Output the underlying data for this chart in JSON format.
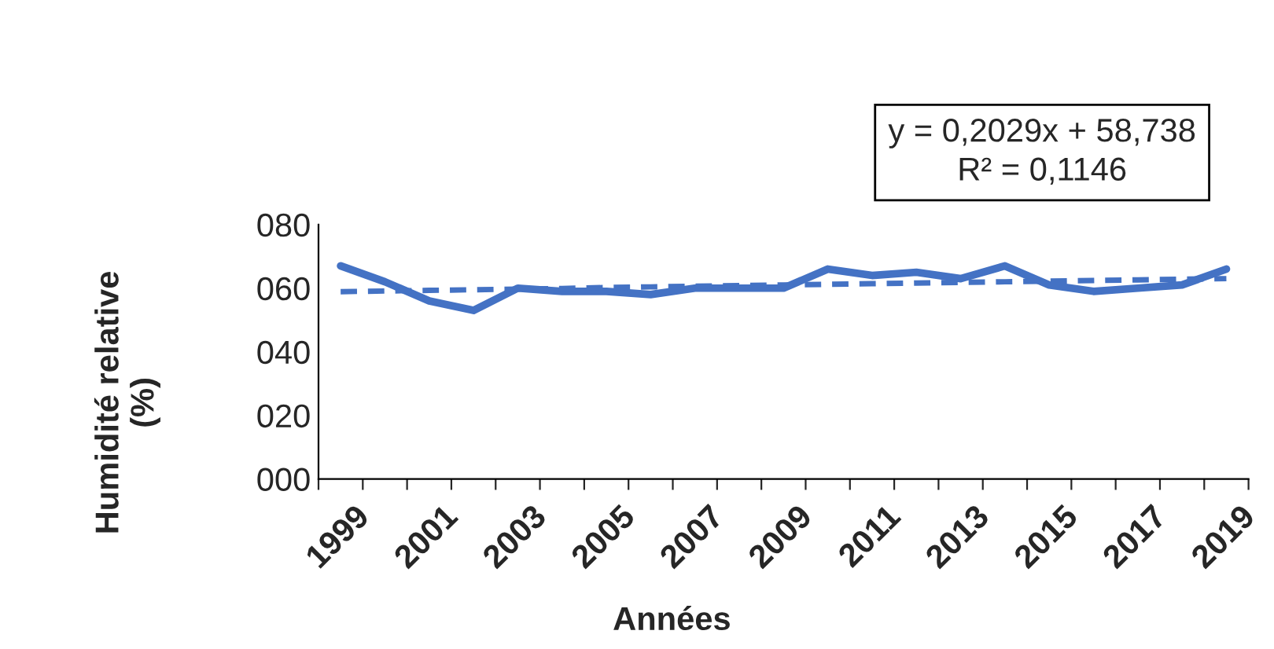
{
  "chart_data": {
    "type": "line",
    "categories": [
      "1999",
      null,
      "2001",
      null,
      "2003",
      null,
      "2005",
      null,
      "2007",
      null,
      "2009",
      null,
      "2011",
      null,
      "2013",
      null,
      "2015",
      null,
      "2017",
      null,
      "2019"
    ],
    "series": [
      {
        "color": "#4472c4",
        "line_style": "solid",
        "values": [
          67,
          62,
          56,
          53,
          60,
          59,
          59,
          58,
          60,
          60,
          60,
          66,
          64,
          65,
          63,
          67,
          61,
          59,
          60,
          61,
          66
        ]
      },
      {
        "color": "#4472c4",
        "line_style": "dashed",
        "values": [
          58.9,
          59.1,
          59.3,
          59.5,
          59.7,
          59.9,
          60.2,
          60.4,
          60.6,
          60.8,
          61.0,
          61.2,
          61.4,
          61.6,
          61.8,
          62.0,
          62.2,
          62.4,
          62.6,
          62.8,
          63.0
        ]
      }
    ],
    "ylim": [
      0,
      80
    ],
    "yticks": [
      {
        "value": 0,
        "label": "000"
      },
      {
        "value": 20,
        "label": "020"
      },
      {
        "value": 40,
        "label": "040"
      },
      {
        "value": 60,
        "label": "060"
      },
      {
        "value": 80,
        "label": "080"
      }
    ],
    "xlabel": "Années",
    "ylabel": "Humidité relative\n(%)",
    "annotations": [
      "y = 0,2029x + 58,738\nR² = 0,1146"
    ],
    "grid": false,
    "legend": false,
    "marker": "none"
  }
}
